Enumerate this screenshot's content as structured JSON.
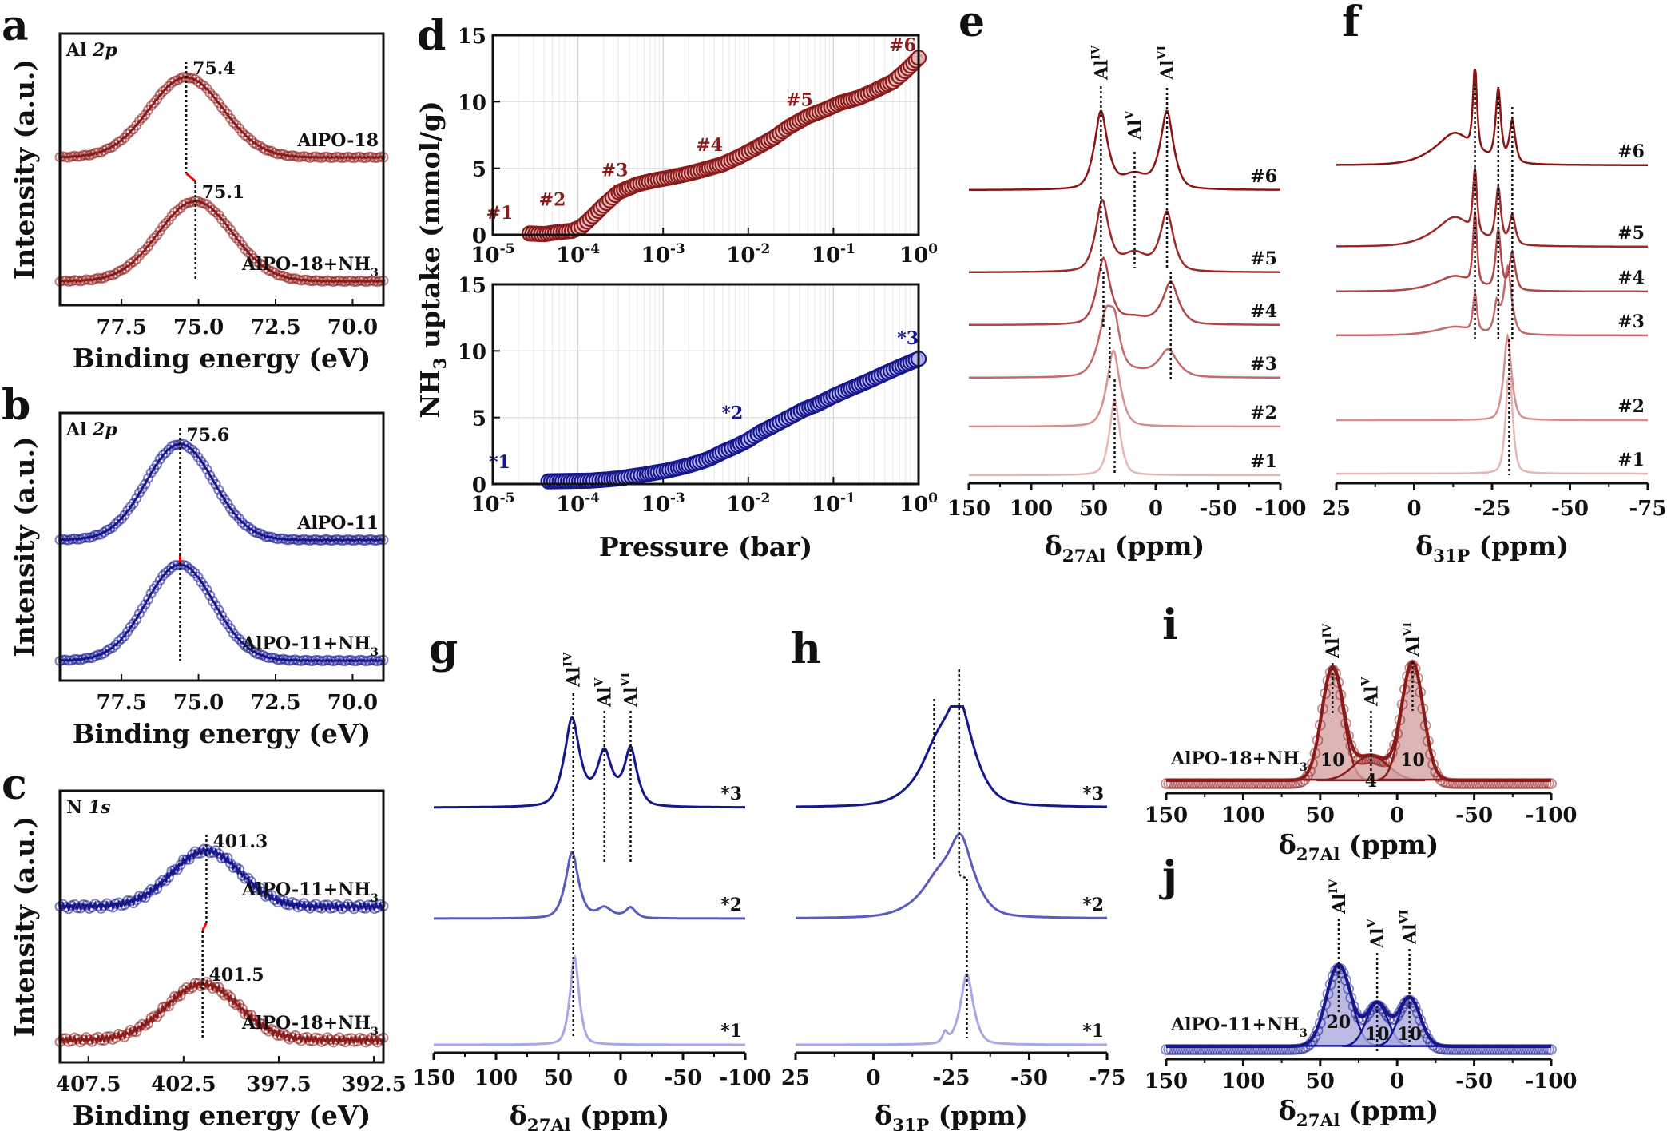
{
  "colors": {
    "red_dark": "#8b1a1a",
    "red_series": [
      "#e7b7b7",
      "#d98f8f",
      "#c56a6a",
      "#b04646",
      "#9b2a2a",
      "#8b1414"
    ],
    "blue_dark": "#16168f",
    "blue_series": [
      "#a8a8e6",
      "#5a5abf",
      "#16168f"
    ],
    "red_fill": "#d5a3a3",
    "blue_fill": "#a9a9dc",
    "shift_marker": "#ff0000"
  },
  "chart_data": [
    {
      "id": "a",
      "panel_label": "a",
      "type": "line",
      "subtitle": "Al 2p",
      "xlabel": "Binding energy (eV)",
      "ylabel": "Intensity (a.u.)",
      "xlim": [
        79.5,
        69.0
      ],
      "xticks": [
        "77.5",
        "75.0",
        "72.5",
        "70.0"
      ],
      "series": [
        {
          "name": "AlPO-18",
          "peak_eV": 75.4,
          "peak_label": "75.4",
          "color": "red",
          "width_eV": 1.2
        },
        {
          "name": "AlPO-18+NH3",
          "peak_eV": 75.1,
          "peak_label": "75.1",
          "color": "red",
          "width_eV": 1.2
        }
      ]
    },
    {
      "id": "b",
      "panel_label": "b",
      "type": "line",
      "subtitle": "Al 2p",
      "xlabel": "Binding energy (eV)",
      "ylabel": "Intensity (a.u.)",
      "xlim": [
        79.5,
        69.0
      ],
      "xticks": [
        "77.5",
        "75.0",
        "72.5",
        "70.0"
      ],
      "series": [
        {
          "name": "AlPO-11",
          "peak_eV": 75.6,
          "peak_label": "75.6",
          "color": "blue",
          "width_eV": 1.1
        },
        {
          "name": "AlPO-11+NH3",
          "peak_eV": 75.6,
          "peak_label": "",
          "color": "blue",
          "width_eV": 1.1
        }
      ]
    },
    {
      "id": "c",
      "panel_label": "c",
      "type": "line",
      "subtitle": "N 1s",
      "xlabel": "Binding energy (eV)",
      "ylabel": "Intensity (a.u.)",
      "xlim": [
        409.0,
        392.0
      ],
      "xticks": [
        "407.5",
        "402.5",
        "397.5",
        "392.5"
      ],
      "series": [
        {
          "name": "AlPO-11+NH3",
          "peak_eV": 401.3,
          "peak_label": "401.3",
          "color": "blue",
          "width_eV": 1.8
        },
        {
          "name": "AlPO-18+NH3",
          "peak_eV": 401.5,
          "peak_label": "401.5",
          "color": "red",
          "width_eV": 1.9
        }
      ]
    },
    {
      "id": "d_top",
      "panel_label": "d",
      "type": "scatter",
      "xscale": "log",
      "xlim": [
        1e-05,
        1
      ],
      "ylim": [
        0,
        15
      ],
      "yticks": [
        "0",
        "5",
        "10",
        "15"
      ],
      "xticks": [
        "10-5",
        "10-4",
        "10-3",
        "10-2",
        "10-1",
        "100"
      ],
      "grid": true,
      "series": [
        {
          "name": "AlPO-18",
          "color": "red",
          "x": [
            2.7e-05,
            4e-05,
            5.8e-05,
            8.5e-05,
            0.00011,
            0.00015,
            0.0002,
            0.0003,
            0.0005,
            0.0008,
            0.0012,
            0.002,
            0.003,
            0.005,
            0.008,
            0.012,
            0.02,
            0.03,
            0.05,
            0.08,
            0.12,
            0.2,
            0.3,
            0.5,
            0.7,
            1.0
          ],
          "y": [
            0.1,
            0.05,
            0.2,
            0.3,
            0.6,
            1.4,
            2.2,
            3.2,
            3.8,
            4.1,
            4.3,
            4.6,
            4.9,
            5.3,
            5.9,
            6.5,
            7.3,
            8.1,
            8.9,
            9.4,
            9.9,
            10.3,
            10.8,
            11.5,
            12.3,
            13.3
          ]
        }
      ],
      "annotations": [
        {
          "text": "#1",
          "x": 1.2e-05,
          "y": 1.2
        },
        {
          "text": "#2",
          "x": 5e-05,
          "y": 2.2
        },
        {
          "text": "#3",
          "x": 0.00027,
          "y": 4.4
        },
        {
          "text": "#4",
          "x": 0.0035,
          "y": 6.3
        },
        {
          "text": "#5",
          "x": 0.04,
          "y": 9.7
        },
        {
          "text": "#6",
          "x": 0.65,
          "y": 13.8
        }
      ]
    },
    {
      "id": "d_bottom",
      "panel_label": "",
      "type": "scatter",
      "xscale": "log",
      "xlabel": "Pressure (bar)",
      "ylabel": "NH3 uptake (mmol/g)",
      "xlim": [
        1e-05,
        1
      ],
      "ylim": [
        0,
        15
      ],
      "yticks": [
        "0",
        "5",
        "10",
        "15"
      ],
      "xticks": [
        "10-5",
        "10-4",
        "10-3",
        "10-2",
        "10-1",
        "100"
      ],
      "grid": true,
      "series": [
        {
          "name": "AlPO-11",
          "color": "blue",
          "x": [
            4.5e-05,
            0.00014,
            0.00023,
            0.00033,
            0.00046,
            0.0006,
            0.0008,
            0.0011,
            0.0015,
            0.002,
            0.0027,
            0.0035,
            0.005,
            0.007,
            0.01,
            0.014,
            0.02,
            0.03,
            0.045,
            0.065,
            0.1,
            0.15,
            0.25,
            0.4,
            0.6,
            1.0
          ],
          "y": [
            0.2,
            0.25,
            0.35,
            0.45,
            0.6,
            0.7,
            0.85,
            1.0,
            1.2,
            1.4,
            1.65,
            1.9,
            2.4,
            2.8,
            3.3,
            3.9,
            4.4,
            5.0,
            5.6,
            6.0,
            6.6,
            7.1,
            7.7,
            8.3,
            8.8,
            9.4
          ]
        }
      ],
      "annotations": [
        {
          "text": "*1",
          "x": 1.2e-05,
          "y": 1.2
        },
        {
          "text": "*2",
          "x": 0.0065,
          "y": 4.9
        },
        {
          "text": "*3",
          "x": 0.75,
          "y": 10.5
        }
      ]
    },
    {
      "id": "e",
      "panel_label": "e",
      "type": "line",
      "xlabel": "δ27Al (ppm)",
      "xlim": [
        150,
        -100
      ],
      "xticks": [
        "150",
        "100",
        "50",
        "0",
        "-50",
        "-100"
      ],
      "peak_markers": [
        "AlIV",
        "AlV",
        "AlVI"
      ],
      "series": [
        {
          "name": "#1",
          "peaks": [
            [
              33,
              1.0,
              4
            ]
          ],
          "tint": 0
        },
        {
          "name": "#2",
          "peaks": [
            [
              34,
              1.0,
              5
            ]
          ],
          "tint": 1
        },
        {
          "name": "#3",
          "peaks": [
            [
              40,
              0.75,
              6
            ],
            [
              33,
              0.45,
              4
            ],
            [
              -10,
              0.35,
              7
            ],
            [
              18,
              0.08,
              14
            ]
          ],
          "tint": 2
        },
        {
          "name": "#4",
          "peaks": [
            [
              42,
              0.85,
              5
            ],
            [
              -12,
              0.55,
              6
            ],
            [
              18,
              0.1,
              14
            ]
          ],
          "tint": 3
        },
        {
          "name": "#5",
          "peaks": [
            [
              43,
              0.9,
              5
            ],
            [
              -9,
              0.75,
              5
            ],
            [
              17,
              0.25,
              12
            ]
          ],
          "tint": 4
        },
        {
          "name": "#6",
          "peaks": [
            [
              44,
              1.0,
              5
            ],
            [
              -9,
              1.0,
              5
            ],
            [
              17,
              0.2,
              12
            ]
          ],
          "tint": 5
        }
      ]
    },
    {
      "id": "f",
      "panel_label": "f",
      "type": "line",
      "xlabel": "δ31P (ppm)",
      "xlim": [
        25,
        -75
      ],
      "xticks": [
        "25",
        "0",
        "-25",
        "-50",
        "-75"
      ],
      "series": [
        {
          "name": "#1",
          "peaks": [
            [
              -30.5,
              1.3,
              1.0
            ]
          ],
          "tint": 0
        },
        {
          "name": "#2",
          "peaks": [
            [
              -30,
              1.0,
              1.2
            ]
          ],
          "tint": 1
        },
        {
          "name": "#3",
          "peaks": [
            [
              -19.5,
              0.45,
              0.6
            ],
            [
              -26.5,
              0.35,
              0.8
            ],
            [
              -30,
              0.8,
              1.2
            ],
            [
              -13,
              0.1,
              6
            ]
          ],
          "tint": 2
        },
        {
          "name": "#4",
          "peaks": [
            [
              -19.5,
              0.85,
              0.6
            ],
            [
              -27,
              0.7,
              0.8
            ],
            [
              -31.5,
              0.45,
              0.9
            ],
            [
              -13,
              0.18,
              6
            ]
          ],
          "tint": 3
        },
        {
          "name": "#5",
          "peaks": [
            [
              -19.5,
              0.75,
              0.6
            ],
            [
              -27,
              0.65,
              0.8
            ],
            [
              -31.5,
              0.35,
              0.9
            ],
            [
              -13,
              0.35,
              6
            ]
          ],
          "tint": 4
        },
        {
          "name": "#6",
          "peaks": [
            [
              -19.5,
              1.0,
              0.6
            ],
            [
              -27,
              0.85,
              0.8
            ],
            [
              -31.5,
              0.5,
              0.9
            ],
            [
              -13,
              0.38,
              6
            ]
          ],
          "tint": 5
        }
      ]
    },
    {
      "id": "g",
      "panel_label": "g",
      "type": "line",
      "xlabel": "δ27Al (ppm)",
      "xlim": [
        150,
        -100
      ],
      "xticks": [
        "150",
        "100",
        "50",
        "0",
        "-50",
        "-100"
      ],
      "peak_markers": [
        "AlIV",
        "AlV",
        "AlVI"
      ],
      "series": [
        {
          "name": "*1",
          "peaks": [
            [
              37,
              1.0,
              3.5
            ]
          ],
          "tint": 0
        },
        {
          "name": "*2",
          "peaks": [
            [
              39,
              0.75,
              5
            ],
            [
              13,
              0.12,
              6
            ],
            [
              -8,
              0.12,
              4
            ]
          ],
          "tint": 1
        },
        {
          "name": "*3",
          "peaks": [
            [
              39,
              1.0,
              6
            ],
            [
              13,
              0.62,
              6
            ],
            [
              -8,
              0.65,
              5
            ]
          ],
          "tint": 2
        }
      ]
    },
    {
      "id": "h",
      "panel_label": "h",
      "type": "line",
      "xlabel": "δ31P (ppm)",
      "xlim": [
        25,
        -75
      ],
      "xticks": [
        "25",
        "0",
        "-25",
        "-50",
        "-75"
      ],
      "series": [
        {
          "name": "*1",
          "peaks": [
            [
              -30,
              0.8,
              2
            ],
            [
              -23,
              0.12,
              0.8
            ]
          ],
          "tint": 0
        },
        {
          "name": "*2",
          "peaks": [
            [
              -28,
              0.8,
              4
            ],
            [
              -20,
              0.35,
              6
            ]
          ],
          "tint": 1
        },
        {
          "name": "*3",
          "peaks": [
            [
              -27.5,
              1.0,
              4.5
            ],
            [
              -20,
              0.5,
              6
            ]
          ],
          "tint": 2
        }
      ]
    },
    {
      "id": "i",
      "panel_label": "i",
      "type": "area",
      "xlabel": "δ27Al (ppm)",
      "xlim": [
        150,
        -100
      ],
      "xticks": [
        "150",
        "100",
        "50",
        "0",
        "-50",
        "-100"
      ],
      "sample": "AlPO-18+NH3",
      "color": "red",
      "components": [
        {
          "label": "AlIV",
          "center_ppm": 42,
          "height": 1.0,
          "width_ppm": 7,
          "area_label": "10"
        },
        {
          "label": "AlV",
          "center_ppm": 17,
          "height": 0.22,
          "width_ppm": 11,
          "area_label": "4"
        },
        {
          "label": "AlVI",
          "center_ppm": -10,
          "height": 1.05,
          "width_ppm": 7,
          "area_label": "10"
        }
      ]
    },
    {
      "id": "j",
      "panel_label": "j",
      "type": "area",
      "xlabel": "δ27Al (ppm)",
      "xlim": [
        150,
        -100
      ],
      "xticks": [
        "150",
        "100",
        "50",
        "0",
        "-50",
        "-100"
      ],
      "sample": "AlPO-11+NH3",
      "color": "blue",
      "components": [
        {
          "label": "AlIV",
          "center_ppm": 38,
          "height": 1.0,
          "width_ppm": 8,
          "area_label": "20"
        },
        {
          "label": "AlV",
          "center_ppm": 13,
          "height": 0.53,
          "width_ppm": 7,
          "area_label": "10"
        },
        {
          "label": "AlVI",
          "center_ppm": -8,
          "height": 0.6,
          "width_ppm": 7,
          "area_label": "10"
        }
      ]
    }
  ]
}
